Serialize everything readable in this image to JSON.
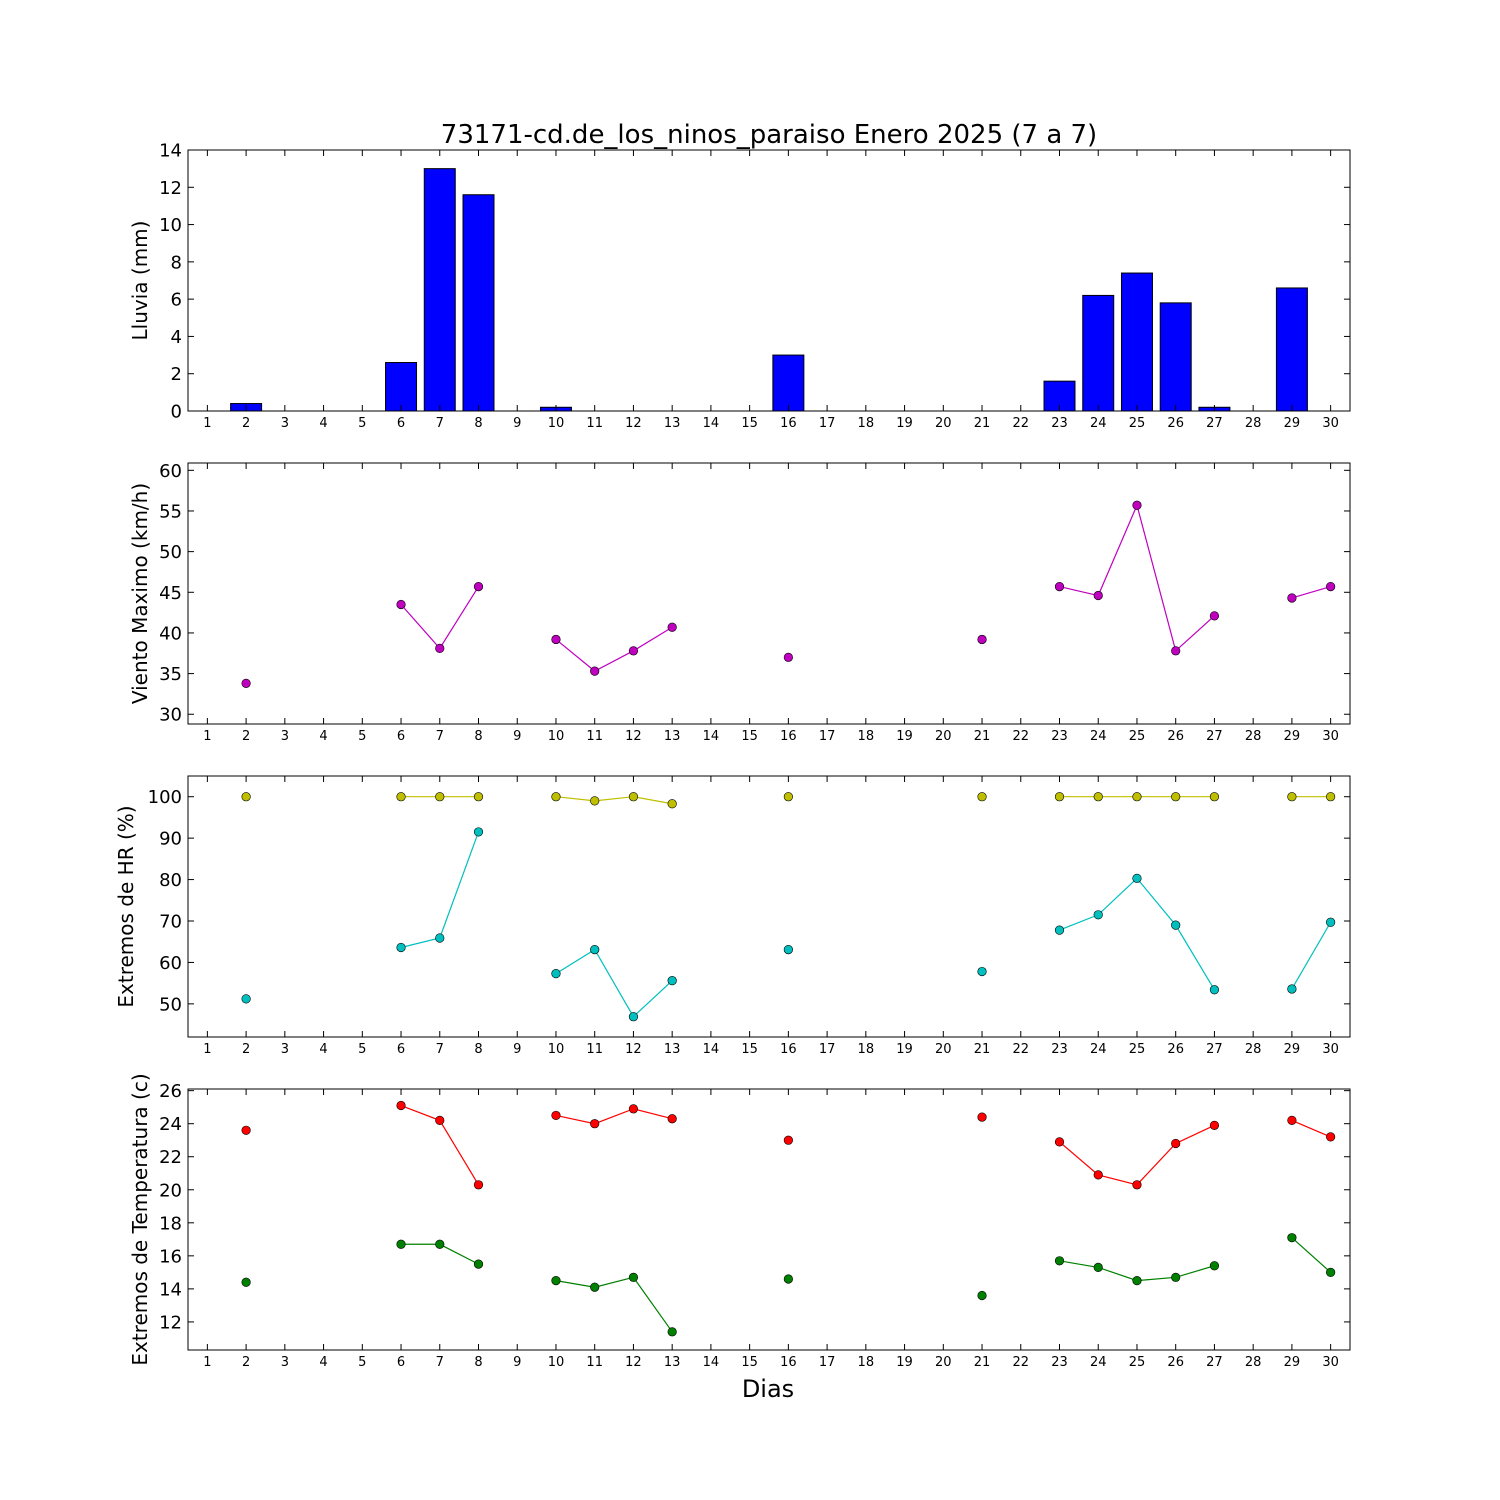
{
  "figure": {
    "title": "73171-cd.de_los_ninos_paraiso Enero 2025  (7 a 7)",
    "xlabel": "Dias"
  },
  "chart_data": [
    {
      "type": "bar",
      "ylabel": "Lluvia (mm)",
      "ylim": [
        0,
        14
      ],
      "yticks": [
        0,
        2,
        4,
        6,
        8,
        10,
        12,
        14
      ],
      "xlim": [
        0.5,
        30.5
      ],
      "xticks": [
        1,
        2,
        3,
        4,
        5,
        6,
        7,
        8,
        9,
        10,
        11,
        12,
        13,
        14,
        15,
        16,
        17,
        18,
        19,
        20,
        21,
        22,
        23,
        24,
        25,
        26,
        27,
        28,
        29,
        30
      ],
      "categories": [
        1,
        2,
        3,
        4,
        5,
        6,
        7,
        8,
        9,
        10,
        11,
        12,
        13,
        14,
        15,
        16,
        17,
        18,
        19,
        20,
        21,
        22,
        23,
        24,
        25,
        26,
        27,
        28,
        29,
        30
      ],
      "grid": false,
      "series": [
        {
          "color": "#0000ff",
          "values": [
            0,
            0.4,
            0,
            0,
            0,
            2.6,
            13.0,
            11.6,
            0,
            0.2,
            0,
            0,
            0,
            0,
            0,
            3.0,
            0,
            0,
            0,
            0,
            0,
            0,
            1.6,
            6.2,
            7.4,
            5.8,
            0.2,
            0,
            6.6,
            0
          ]
        }
      ]
    },
    {
      "type": "line",
      "ylabel": "Viento Maximo (km/h)",
      "ylim": [
        28.8,
        60.9
      ],
      "yticks": [
        30,
        35,
        40,
        45,
        50,
        55,
        60
      ],
      "xlim": [
        0.5,
        30.5
      ],
      "xticks": [
        1,
        2,
        3,
        4,
        5,
        6,
        7,
        8,
        9,
        10,
        11,
        12,
        13,
        14,
        15,
        16,
        17,
        18,
        19,
        20,
        21,
        22,
        23,
        24,
        25,
        26,
        27,
        28,
        29,
        30
      ],
      "grid": false,
      "series": [
        {
          "color": "#bf00bf",
          "x": [
            1,
            2,
            3,
            4,
            5,
            6,
            7,
            8,
            9,
            10,
            11,
            12,
            13,
            14,
            15,
            16,
            17,
            18,
            19,
            20,
            21,
            22,
            23,
            24,
            25,
            26,
            27,
            28,
            29,
            30
          ],
          "y": [
            null,
            33.8,
            null,
            null,
            null,
            43.5,
            38.1,
            45.7,
            null,
            39.2,
            35.3,
            37.8,
            40.7,
            null,
            null,
            37.0,
            null,
            null,
            null,
            null,
            39.2,
            null,
            45.7,
            44.6,
            55.7,
            37.8,
            42.1,
            null,
            44.3,
            45.7
          ]
        }
      ]
    },
    {
      "type": "line",
      "ylabel": "Extremos de HR (%)",
      "ylim": [
        42,
        105
      ],
      "yticks": [
        50,
        60,
        70,
        80,
        90,
        100
      ],
      "xlim": [
        0.5,
        30.5
      ],
      "xticks": [
        1,
        2,
        3,
        4,
        5,
        6,
        7,
        8,
        9,
        10,
        11,
        12,
        13,
        14,
        15,
        16,
        17,
        18,
        19,
        20,
        21,
        22,
        23,
        24,
        25,
        26,
        27,
        28,
        29,
        30
      ],
      "grid": false,
      "series": [
        {
          "color": "#bfbf00",
          "x": [
            1,
            2,
            3,
            4,
            5,
            6,
            7,
            8,
            9,
            10,
            11,
            12,
            13,
            14,
            15,
            16,
            17,
            18,
            19,
            20,
            21,
            22,
            23,
            24,
            25,
            26,
            27,
            28,
            29,
            30
          ],
          "y": [
            null,
            100,
            null,
            null,
            null,
            100,
            100,
            100,
            null,
            100,
            99,
            100,
            98.3,
            null,
            null,
            100,
            null,
            null,
            null,
            null,
            100,
            null,
            100,
            100,
            100,
            100,
            100,
            null,
            100,
            100
          ]
        },
        {
          "color": "#00bfbf",
          "x": [
            1,
            2,
            3,
            4,
            5,
            6,
            7,
            8,
            9,
            10,
            11,
            12,
            13,
            14,
            15,
            16,
            17,
            18,
            19,
            20,
            21,
            22,
            23,
            24,
            25,
            26,
            27,
            28,
            29,
            30
          ],
          "y": [
            null,
            51.2,
            null,
            null,
            null,
            63.6,
            65.9,
            91.5,
            null,
            57.3,
            63.1,
            46.9,
            55.6,
            null,
            null,
            63.1,
            null,
            null,
            null,
            null,
            57.8,
            null,
            67.8,
            71.5,
            80.3,
            69.0,
            53.4,
            null,
            53.6,
            69.7
          ]
        }
      ]
    },
    {
      "type": "line",
      "ylabel": "Extremos de Temperatura (c)",
      "ylim": [
        10.3,
        26.1
      ],
      "yticks": [
        12,
        14,
        16,
        18,
        20,
        22,
        24,
        26
      ],
      "xlim": [
        0.5,
        30.5
      ],
      "xticks": [
        1,
        2,
        3,
        4,
        5,
        6,
        7,
        8,
        9,
        10,
        11,
        12,
        13,
        14,
        15,
        16,
        17,
        18,
        19,
        20,
        21,
        22,
        23,
        24,
        25,
        26,
        27,
        28,
        29,
        30
      ],
      "grid": false,
      "series": [
        {
          "color": "#ff0000",
          "x": [
            1,
            2,
            3,
            4,
            5,
            6,
            7,
            8,
            9,
            10,
            11,
            12,
            13,
            14,
            15,
            16,
            17,
            18,
            19,
            20,
            21,
            22,
            23,
            24,
            25,
            26,
            27,
            28,
            29,
            30
          ],
          "y": [
            null,
            23.6,
            null,
            null,
            null,
            25.1,
            24.2,
            20.3,
            null,
            24.5,
            24.0,
            24.9,
            24.3,
            null,
            null,
            23.0,
            null,
            null,
            null,
            null,
            24.4,
            null,
            22.9,
            20.9,
            20.3,
            22.8,
            23.9,
            null,
            24.2,
            23.2
          ]
        },
        {
          "color": "#008000",
          "x": [
            1,
            2,
            3,
            4,
            5,
            6,
            7,
            8,
            9,
            10,
            11,
            12,
            13,
            14,
            15,
            16,
            17,
            18,
            19,
            20,
            21,
            22,
            23,
            24,
            25,
            26,
            27,
            28,
            29,
            30
          ],
          "y": [
            null,
            14.4,
            null,
            null,
            null,
            16.7,
            16.7,
            15.5,
            null,
            14.5,
            14.1,
            14.7,
            11.4,
            null,
            null,
            14.6,
            null,
            null,
            null,
            null,
            13.6,
            null,
            15.7,
            15.3,
            14.5,
            14.7,
            15.4,
            null,
            17.1,
            15.0
          ]
        }
      ]
    }
  ]
}
